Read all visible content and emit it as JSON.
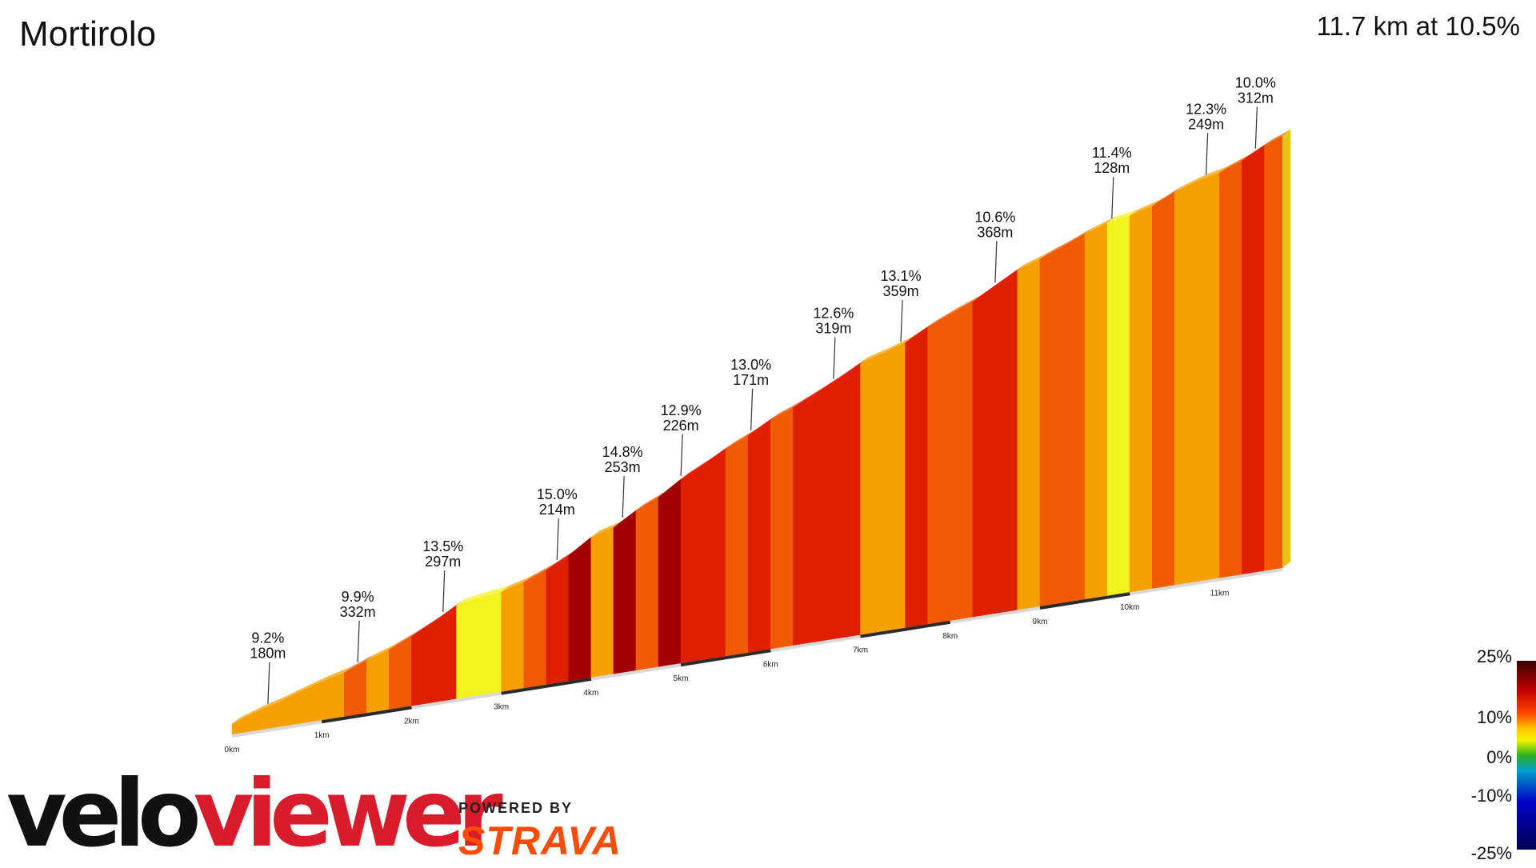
{
  "title": "Mortirolo",
  "summary": "11.7 km at 10.5%",
  "legend": {
    "labels": [
      "25%",
      "10%",
      "0%",
      "-10%",
      "-25%"
    ]
  },
  "branding": {
    "velo": "velo",
    "viewer": "viewer",
    "powered_by": "POWERED BY",
    "strava": "STRAVA"
  },
  "chart_data": {
    "type": "area",
    "x": [
      0,
      0.25,
      0.5,
      0.75,
      1,
      1.25,
      1.5,
      1.75,
      2,
      2.25,
      2.5,
      2.75,
      3,
      3.25,
      3.5,
      3.75,
      4,
      4.25,
      4.5,
      4.75,
      5,
      5.25,
      5.5,
      5.75,
      6,
      6.25,
      6.5,
      6.75,
      7,
      7.25,
      7.5,
      7.75,
      8,
      8.25,
      8.5,
      8.75,
      9,
      9.25,
      9.5,
      9.75,
      10,
      10.25,
      10.5,
      10.75,
      11,
      11.25,
      11.5,
      11.7
    ],
    "gradients": [
      6,
      9.2,
      8,
      9,
      8.5,
      7.5,
      9.9,
      9,
      11,
      12,
      13.5,
      6,
      5,
      8,
      10,
      12,
      15,
      8,
      14,
      11,
      14.8,
      12,
      13,
      11,
      12.9,
      10,
      11.5,
      12,
      13.0,
      8,
      9,
      12.6,
      11,
      10,
      13.1,
      13,
      9,
      10,
      10.6,
      9,
      6,
      8,
      11.4,
      9,
      7,
      10,
      12.3,
      10.0
    ],
    "x_ticks": [
      "0km",
      "1km",
      "2km",
      "3km",
      "4km",
      "5km",
      "6km",
      "7km",
      "8km",
      "9km",
      "10km",
      "11km"
    ],
    "annotations": [
      {
        "x": 0.4,
        "grade": "9.2%",
        "length": "180m"
      },
      {
        "x": 1.4,
        "grade": "9.9%",
        "length": "332m"
      },
      {
        "x": 2.35,
        "grade": "13.5%",
        "length": "297m"
      },
      {
        "x": 3.62,
        "grade": "15.0%",
        "length": "214m"
      },
      {
        "x": 4.35,
        "grade": "14.8%",
        "length": "253m"
      },
      {
        "x": 5.0,
        "grade": "12.9%",
        "length": "226m"
      },
      {
        "x": 5.78,
        "grade": "13.0%",
        "length": "171m"
      },
      {
        "x": 6.7,
        "grade": "12.6%",
        "length": "319m"
      },
      {
        "x": 7.45,
        "grade": "13.1%",
        "length": "359m"
      },
      {
        "x": 8.5,
        "grade": "10.6%",
        "length": "368m"
      },
      {
        "x": 9.8,
        "grade": "11.4%",
        "length": "128m"
      },
      {
        "x": 10.85,
        "grade": "12.3%",
        "length": "249m"
      },
      {
        "x": 11.4,
        "grade": "10.0%",
        "length": "312m"
      }
    ],
    "colors": {
      "low": "#f2f21e",
      "mid": "#f5a000",
      "high": "#f05a00",
      "steep": "#e01e00",
      "extreme": "#a00000"
    }
  }
}
